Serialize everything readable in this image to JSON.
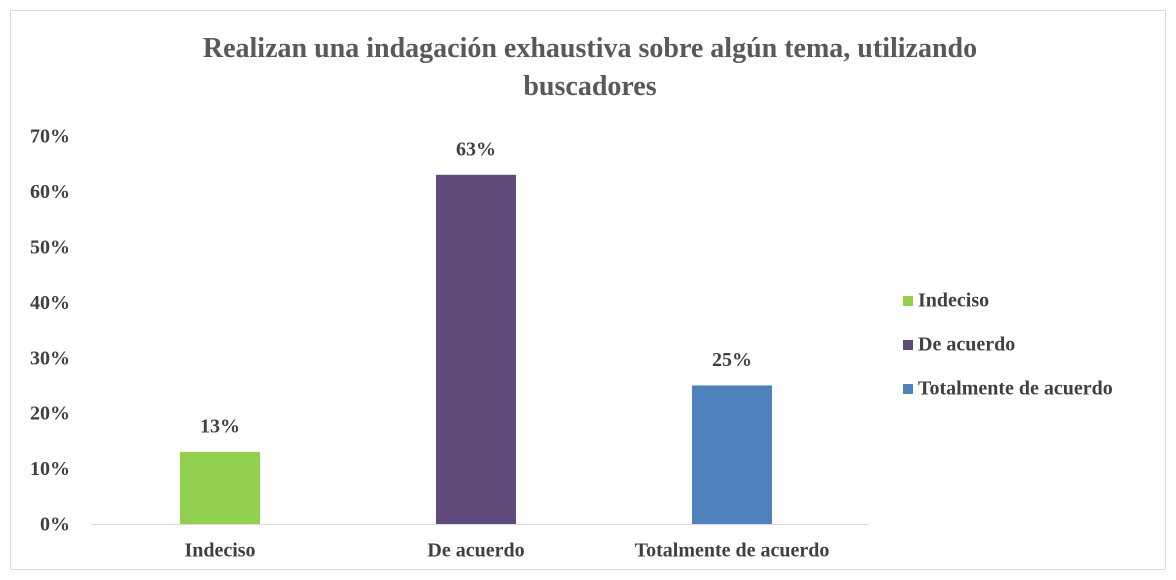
{
  "chart_data": {
    "type": "bar",
    "title": "Realizan una indagación exhaustiva sobre algún tema, utilizando buscadores",
    "categories": [
      "Indeciso",
      "De acuerdo",
      "Totalmente de acuerdo"
    ],
    "values": [
      13,
      63,
      25
    ],
    "value_labels": [
      "13%",
      "63%",
      "25%"
    ],
    "colors": [
      "#92d050",
      "#604a7b",
      "#4f81bd"
    ],
    "ylim": [
      0,
      70
    ],
    "yticks": [
      {
        "value": 0,
        "label": "0%"
      },
      {
        "value": 10,
        "label": "10%"
      },
      {
        "value": 20,
        "label": "20%"
      },
      {
        "value": 30,
        "label": "30%"
      },
      {
        "value": 40,
        "label": "40%"
      },
      {
        "value": 50,
        "label": "50%"
      },
      {
        "value": 60,
        "label": "60%"
      },
      {
        "value": 70,
        "label": "70%"
      }
    ],
    "grid": false,
    "legend": "right"
  }
}
